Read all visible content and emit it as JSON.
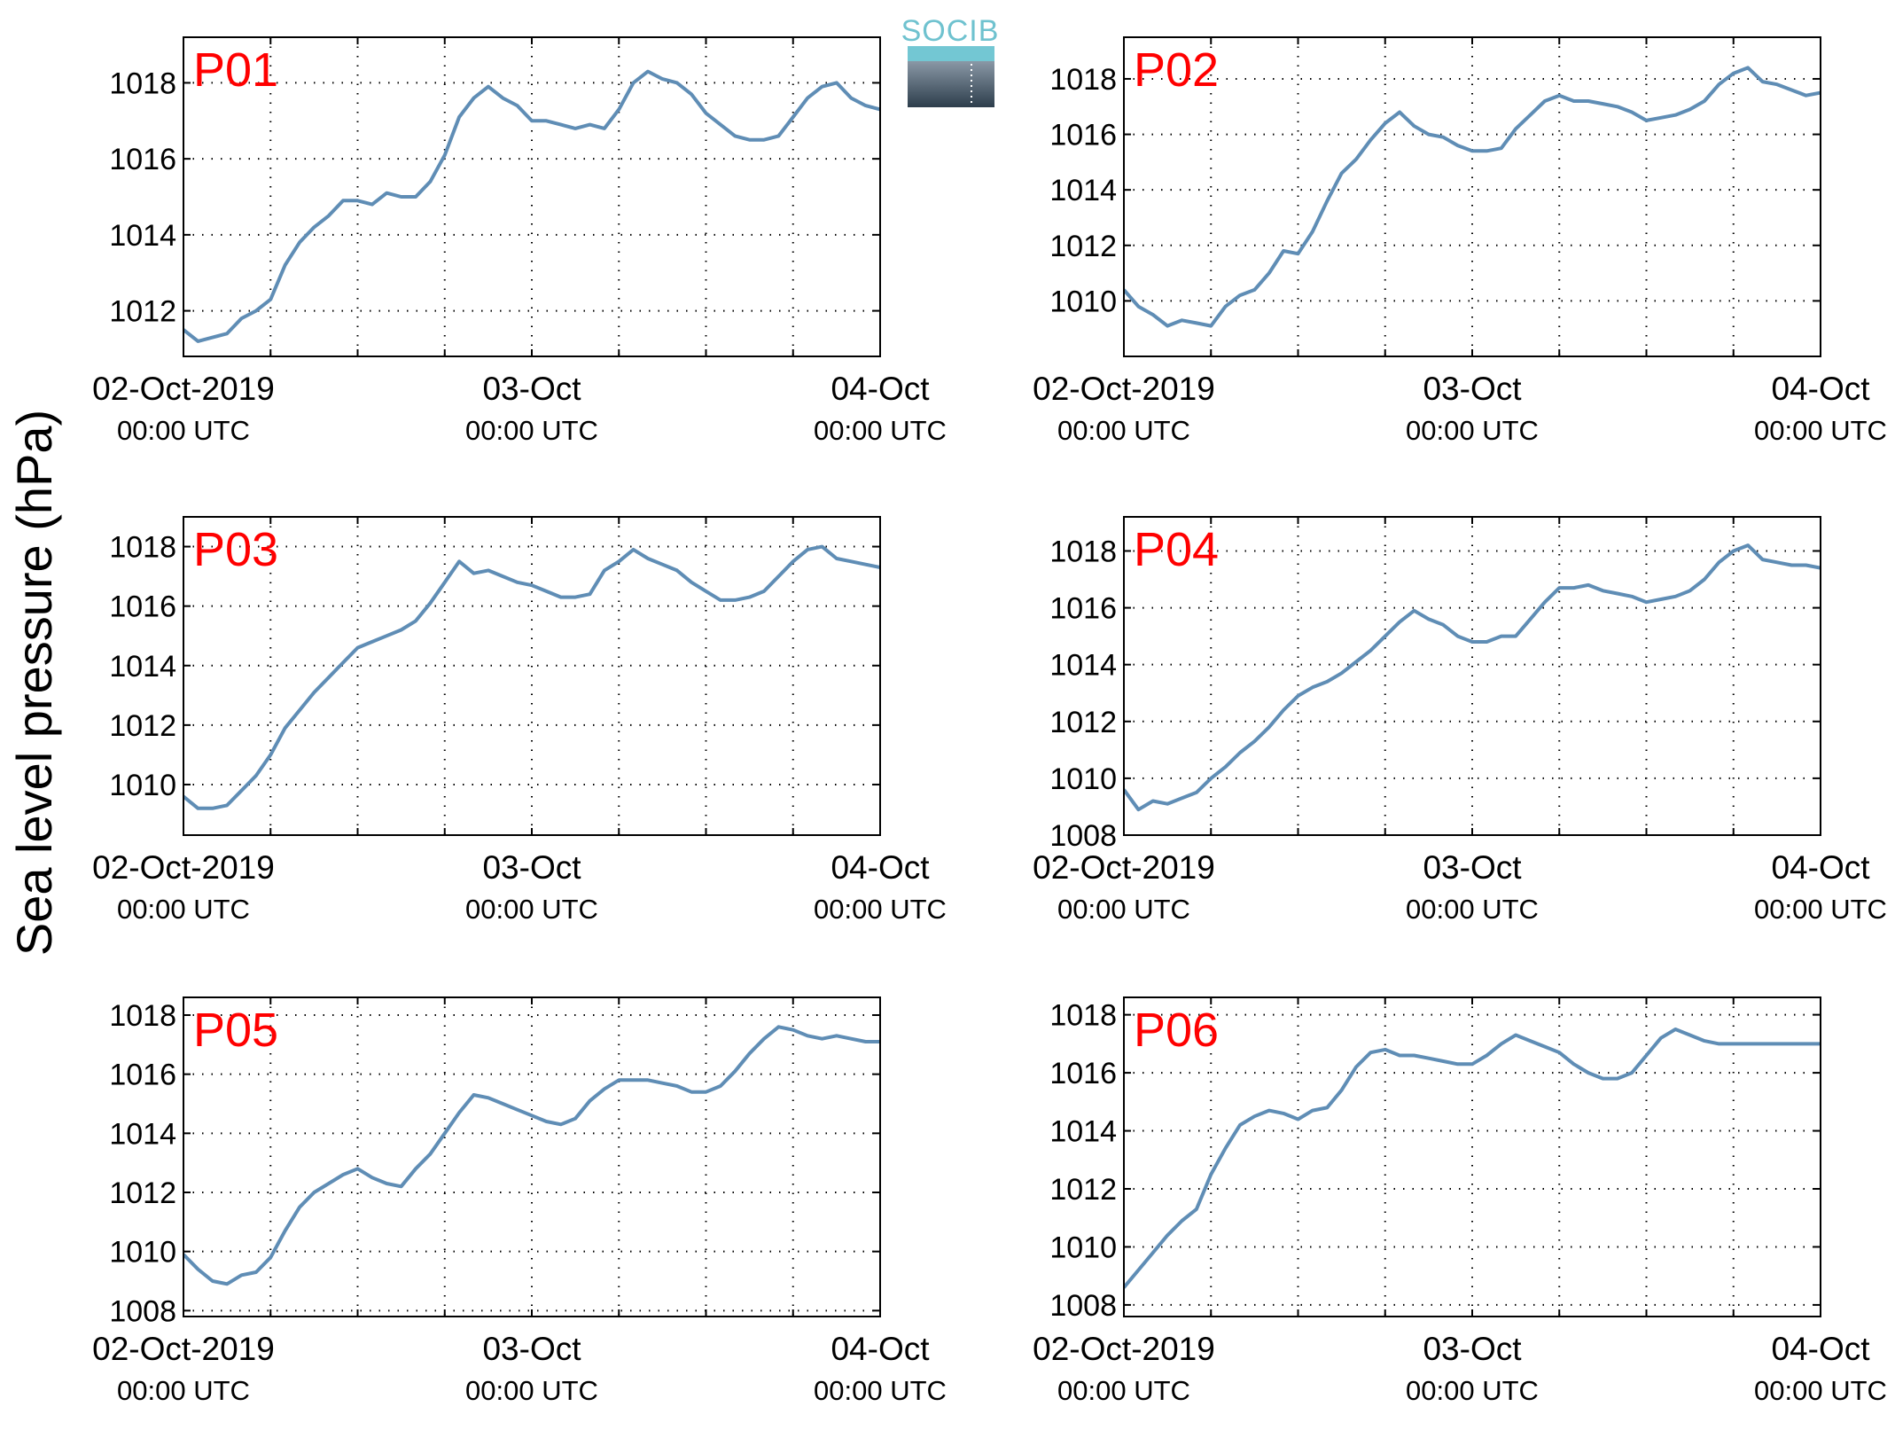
{
  "figure": {
    "ylabel": "Sea level pressure (hPa)",
    "logo_text": "SOCIB",
    "line_color": "#5f8db5",
    "title_color": "#ff0000"
  },
  "chart_data": [
    {
      "type": "line",
      "title": "P01",
      "xlabel": "",
      "ylabel": "Sea level pressure (hPa)",
      "xlim": [
        "2019-10-02T00:00",
        "2019-10-04T00:00"
      ],
      "ylim": [
        1010.8,
        1019.2
      ],
      "yticks": [
        1012,
        1014,
        1016,
        1018
      ],
      "xticks": [
        {
          "label": "02-Oct-2019",
          "sub": "00:00 UTC"
        },
        {
          "label": "03-Oct",
          "sub": "00:00 UTC"
        },
        {
          "label": "04-Oct",
          "sub": "00:00 UTC"
        }
      ],
      "grid": true,
      "series": [
        {
          "x_hours": [
            0,
            1,
            2,
            3,
            4,
            5,
            6,
            7,
            8,
            9,
            10,
            11,
            12,
            13,
            14,
            15,
            16,
            17,
            18,
            19,
            20,
            21,
            22,
            23,
            24,
            25,
            26,
            27,
            28,
            29,
            30,
            31,
            32,
            33,
            34,
            35,
            36,
            37,
            38,
            39,
            40,
            41,
            42,
            43,
            44,
            45,
            46,
            47,
            48
          ],
          "values": [
            1011.5,
            1011.2,
            1011.3,
            1011.4,
            1011.8,
            1012.0,
            1012.3,
            1013.2,
            1013.8,
            1014.2,
            1014.5,
            1014.9,
            1014.9,
            1014.8,
            1015.1,
            1015.0,
            1015.0,
            1015.4,
            1016.1,
            1017.1,
            1017.6,
            1017.9,
            1017.6,
            1017.4,
            1017.0,
            1017.0,
            1016.9,
            1016.8,
            1016.9,
            1016.8,
            1017.3,
            1018.0,
            1018.3,
            1018.1,
            1018.0,
            1017.7,
            1017.2,
            1016.9,
            1016.6,
            1016.5,
            1016.5,
            1016.6,
            1017.1,
            1017.6,
            1017.9,
            1018.0,
            1017.6,
            1017.4,
            1017.3
          ]
        }
      ]
    },
    {
      "type": "line",
      "title": "P02",
      "xlabel": "",
      "ylabel": "Sea level pressure (hPa)",
      "xlim": [
        "2019-10-02T00:00",
        "2019-10-04T00:00"
      ],
      "ylim": [
        1008.0,
        1019.5
      ],
      "yticks": [
        1010,
        1012,
        1014,
        1016,
        1018
      ],
      "xticks": [
        {
          "label": "02-Oct-2019",
          "sub": "00:00 UTC"
        },
        {
          "label": "03-Oct",
          "sub": "00:00 UTC"
        },
        {
          "label": "04-Oct",
          "sub": "00:00 UTC"
        }
      ],
      "grid": true,
      "series": [
        {
          "x_hours": [
            0,
            1,
            2,
            3,
            4,
            5,
            6,
            7,
            8,
            9,
            10,
            11,
            12,
            13,
            14,
            15,
            16,
            17,
            18,
            19,
            20,
            21,
            22,
            23,
            24,
            25,
            26,
            27,
            28,
            29,
            30,
            31,
            32,
            33,
            34,
            35,
            36,
            37,
            38,
            39,
            40,
            41,
            42,
            43,
            44,
            45,
            46,
            47,
            48
          ],
          "values": [
            1010.4,
            1009.8,
            1009.5,
            1009.1,
            1009.3,
            1009.2,
            1009.1,
            1009.8,
            1010.2,
            1010.4,
            1011.0,
            1011.8,
            1011.7,
            1012.5,
            1013.6,
            1014.6,
            1015.1,
            1015.8,
            1016.4,
            1016.8,
            1016.3,
            1016.0,
            1015.9,
            1015.6,
            1015.4,
            1015.4,
            1015.5,
            1016.2,
            1016.7,
            1017.2,
            1017.4,
            1017.2,
            1017.2,
            1017.1,
            1017.0,
            1016.8,
            1016.5,
            1016.6,
            1016.7,
            1016.9,
            1017.2,
            1017.8,
            1018.2,
            1018.4,
            1017.9,
            1017.8,
            1017.6,
            1017.4,
            1017.5
          ]
        }
      ]
    },
    {
      "type": "line",
      "title": "P03",
      "xlabel": "",
      "ylabel": "Sea level pressure (hPa)",
      "xlim": [
        "2019-10-02T00:00",
        "2019-10-04T00:00"
      ],
      "ylim": [
        1008.3,
        1019.0
      ],
      "yticks": [
        1010,
        1012,
        1014,
        1016,
        1018
      ],
      "xticks": [
        {
          "label": "02-Oct-2019",
          "sub": "00:00 UTC"
        },
        {
          "label": "03-Oct",
          "sub": "00:00 UTC"
        },
        {
          "label": "04-Oct",
          "sub": "00:00 UTC"
        }
      ],
      "grid": true,
      "series": [
        {
          "x_hours": [
            0,
            1,
            2,
            3,
            4,
            5,
            6,
            7,
            8,
            9,
            10,
            11,
            12,
            13,
            14,
            15,
            16,
            17,
            18,
            19,
            20,
            21,
            22,
            23,
            24,
            25,
            26,
            27,
            28,
            29,
            30,
            31,
            32,
            33,
            34,
            35,
            36,
            37,
            38,
            39,
            40,
            41,
            42,
            43,
            44,
            45,
            46,
            47,
            48
          ],
          "values": [
            1009.6,
            1009.2,
            1009.2,
            1009.3,
            1009.8,
            1010.3,
            1011.0,
            1011.9,
            1012.5,
            1013.1,
            1013.6,
            1014.1,
            1014.6,
            1014.8,
            1015.0,
            1015.2,
            1015.5,
            1016.1,
            1016.8,
            1017.5,
            1017.1,
            1017.2,
            1017.0,
            1016.8,
            1016.7,
            1016.5,
            1016.3,
            1016.3,
            1016.4,
            1017.2,
            1017.5,
            1017.9,
            1017.6,
            1017.4,
            1017.2,
            1016.8,
            1016.5,
            1016.2,
            1016.2,
            1016.3,
            1016.5,
            1017.0,
            1017.5,
            1017.9,
            1018.0,
            1017.6,
            1017.5,
            1017.4,
            1017.3
          ]
        }
      ]
    },
    {
      "type": "line",
      "title": "P04",
      "xlabel": "",
      "ylabel": "Sea level pressure (hPa)",
      "xlim": [
        "2019-10-02T00:00",
        "2019-10-04T00:00"
      ],
      "ylim": [
        1008.0,
        1019.2
      ],
      "yticks": [
        1008,
        1010,
        1012,
        1014,
        1016,
        1018
      ],
      "xticks": [
        {
          "label": "02-Oct-2019",
          "sub": "00:00 UTC"
        },
        {
          "label": "03-Oct",
          "sub": "00:00 UTC"
        },
        {
          "label": "04-Oct",
          "sub": "00:00 UTC"
        }
      ],
      "grid": true,
      "series": [
        {
          "x_hours": [
            0,
            1,
            2,
            3,
            4,
            5,
            6,
            7,
            8,
            9,
            10,
            11,
            12,
            13,
            14,
            15,
            16,
            17,
            18,
            19,
            20,
            21,
            22,
            23,
            24,
            25,
            26,
            27,
            28,
            29,
            30,
            31,
            32,
            33,
            34,
            35,
            36,
            37,
            38,
            39,
            40,
            41,
            42,
            43,
            44,
            45,
            46,
            47,
            48
          ],
          "values": [
            1009.6,
            1008.9,
            1009.2,
            1009.1,
            1009.3,
            1009.5,
            1010.0,
            1010.4,
            1010.9,
            1011.3,
            1011.8,
            1012.4,
            1012.9,
            1013.2,
            1013.4,
            1013.7,
            1014.1,
            1014.5,
            1015.0,
            1015.5,
            1015.9,
            1015.6,
            1015.4,
            1015.0,
            1014.8,
            1014.8,
            1015.0,
            1015.0,
            1015.6,
            1016.2,
            1016.7,
            1016.7,
            1016.8,
            1016.6,
            1016.5,
            1016.4,
            1016.2,
            1016.3,
            1016.4,
            1016.6,
            1017.0,
            1017.6,
            1018.0,
            1018.2,
            1017.7,
            1017.6,
            1017.5,
            1017.5,
            1017.4
          ]
        }
      ]
    },
    {
      "type": "line",
      "title": "P05",
      "xlabel": "",
      "ylabel": "Sea level pressure (hPa)",
      "xlim": [
        "2019-10-02T00:00",
        "2019-10-04T00:00"
      ],
      "ylim": [
        1007.8,
        1018.6
      ],
      "yticks": [
        1008,
        1010,
        1012,
        1014,
        1016,
        1018
      ],
      "xticks": [
        {
          "label": "02-Oct-2019",
          "sub": "00:00 UTC"
        },
        {
          "label": "03-Oct",
          "sub": "00:00 UTC"
        },
        {
          "label": "04-Oct",
          "sub": "00:00 UTC"
        }
      ],
      "grid": true,
      "series": [
        {
          "x_hours": [
            0,
            1,
            2,
            3,
            4,
            5,
            6,
            7,
            8,
            9,
            10,
            11,
            12,
            13,
            14,
            15,
            16,
            17,
            18,
            19,
            20,
            21,
            22,
            23,
            24,
            25,
            26,
            27,
            28,
            29,
            30,
            31,
            32,
            33,
            34,
            35,
            36,
            37,
            38,
            39,
            40,
            41,
            42,
            43,
            44,
            45,
            46,
            47,
            48
          ],
          "values": [
            1009.9,
            1009.4,
            1009.0,
            1008.9,
            1009.2,
            1009.3,
            1009.8,
            1010.7,
            1011.5,
            1012.0,
            1012.3,
            1012.6,
            1012.8,
            1012.5,
            1012.3,
            1012.2,
            1012.8,
            1013.3,
            1014.0,
            1014.7,
            1015.3,
            1015.2,
            1015.0,
            1014.8,
            1014.6,
            1014.4,
            1014.3,
            1014.5,
            1015.1,
            1015.5,
            1015.8,
            1015.8,
            1015.8,
            1015.7,
            1015.6,
            1015.4,
            1015.4,
            1015.6,
            1016.1,
            1016.7,
            1017.2,
            1017.6,
            1017.5,
            1017.3,
            1017.2,
            1017.3,
            1017.2,
            1017.1,
            1017.1
          ]
        }
      ]
    },
    {
      "type": "line",
      "title": "P06",
      "xlabel": "",
      "ylabel": "Sea level pressure (hPa)",
      "xlim": [
        "2019-10-02T00:00",
        "2019-10-04T00:00"
      ],
      "ylim": [
        1007.6,
        1018.6
      ],
      "yticks": [
        1008,
        1010,
        1012,
        1014,
        1016,
        1018
      ],
      "xticks": [
        {
          "label": "02-Oct-2019",
          "sub": "00:00 UTC"
        },
        {
          "label": "03-Oct",
          "sub": "00:00 UTC"
        },
        {
          "label": "04-Oct",
          "sub": "00:00 UTC"
        }
      ],
      "grid": true,
      "series": [
        {
          "x_hours": [
            0,
            1,
            2,
            3,
            4,
            5,
            6,
            7,
            8,
            9,
            10,
            11,
            12,
            13,
            14,
            15,
            16,
            17,
            18,
            19,
            20,
            21,
            22,
            23,
            24,
            25,
            26,
            27,
            28,
            29,
            30,
            31,
            32,
            33,
            34,
            35,
            36,
            37,
            38,
            39,
            40,
            41,
            42,
            43,
            44,
            45,
            46,
            47,
            48
          ],
          "values": [
            1008.6,
            1009.2,
            1009.8,
            1010.4,
            1010.9,
            1011.3,
            1012.5,
            1013.4,
            1014.2,
            1014.5,
            1014.7,
            1014.6,
            1014.4,
            1014.7,
            1014.8,
            1015.4,
            1016.2,
            1016.7,
            1016.8,
            1016.6,
            1016.6,
            1016.5,
            1016.4,
            1016.3,
            1016.3,
            1016.6,
            1017.0,
            1017.3,
            1017.1,
            1016.9,
            1016.7,
            1016.3,
            1016.0,
            1015.8,
            1015.8,
            1016.0,
            1016.6,
            1017.2,
            1017.5,
            1017.3,
            1017.1,
            1017.0,
            1017.0,
            1017.0,
            1017.0,
            1017.0,
            1017.0,
            1017.0,
            1017.0
          ]
        }
      ]
    }
  ]
}
